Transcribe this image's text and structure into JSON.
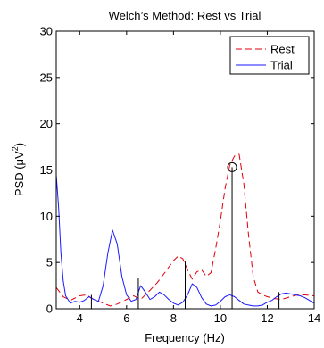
{
  "chart_data": {
    "type": "line",
    "title": "Welch’s Method: Rest vs Trial",
    "xlabel": "Frequency (Hz)",
    "ylabel_prefix": "PSD (",
    "ylabel_unit": "μV",
    "ylabel_exp": "2",
    "ylabel_suffix": ")",
    "xlim": [
      3,
      14
    ],
    "ylim": [
      0,
      30
    ],
    "xticks": [
      4,
      6,
      8,
      10,
      12,
      14
    ],
    "yticks": [
      0,
      5,
      10,
      15,
      20,
      25,
      30
    ],
    "grid": false,
    "legend_position": "top-right",
    "series": [
      {
        "name": "Rest",
        "color": "#e0000d",
        "style": "dashed",
        "x": [
          3,
          3.3,
          3.6,
          4,
          4.3,
          4.6,
          5,
          5.3,
          5.6,
          6,
          6.3,
          6.6,
          7,
          7.3,
          7.6,
          8,
          8.2,
          8.4,
          8.6,
          8.8,
          9,
          9.2,
          9.4,
          9.6,
          9.8,
          10,
          10.2,
          10.4,
          10.6,
          10.8,
          11,
          11.2,
          11.4,
          11.6,
          11.8,
          12,
          12.3,
          12.6,
          13,
          13.3,
          13.6,
          14
        ],
        "y": [
          2.3,
          1.3,
          0.9,
          1.4,
          1.5,
          1.0,
          0.6,
          0.3,
          0.5,
          1.0,
          1.4,
          1.0,
          2.0,
          2.8,
          3.8,
          5.2,
          5.7,
          5.4,
          4.2,
          3.2,
          4.0,
          4.2,
          3.5,
          3.9,
          6.5,
          9.5,
          13.0,
          15.5,
          16.5,
          16.7,
          13.5,
          8.0,
          3.5,
          1.8,
          1.5,
          1.3,
          1.1,
          1.0,
          1.3,
          1.5,
          1.5,
          1.4
        ]
      },
      {
        "name": "Trial",
        "color": "#1a1aff",
        "style": "solid",
        "x": [
          3,
          3.1,
          3.2,
          3.3,
          3.4,
          3.6,
          3.8,
          4,
          4.2,
          4.4,
          4.6,
          4.8,
          5,
          5.2,
          5.4,
          5.6,
          5.8,
          6,
          6.2,
          6.4,
          6.6,
          6.8,
          7,
          7.2,
          7.4,
          7.6,
          7.8,
          8,
          8.2,
          8.4,
          8.6,
          8.8,
          9,
          9.2,
          9.4,
          9.6,
          9.8,
          10,
          10.2,
          10.4,
          10.6,
          10.8,
          11,
          11.2,
          11.4,
          11.6,
          11.8,
          12,
          12.2,
          12.4,
          12.6,
          12.8,
          13,
          13.2,
          13.4,
          13.6,
          13.8,
          14
        ],
        "y": [
          14.5,
          11.0,
          6.0,
          3.0,
          1.4,
          0.6,
          0.8,
          0.7,
          0.9,
          1.3,
          1.0,
          0.8,
          2.5,
          6.0,
          8.5,
          7.0,
          3.5,
          1.5,
          0.8,
          1.0,
          2.5,
          1.8,
          1.0,
          1.3,
          1.8,
          1.5,
          1.0,
          0.6,
          0.4,
          0.7,
          1.5,
          2.7,
          2.3,
          1.2,
          0.5,
          0.3,
          0.4,
          0.8,
          1.3,
          1.5,
          1.3,
          0.9,
          0.5,
          0.4,
          0.3,
          0.3,
          0.4,
          0.7,
          0.9,
          1.3,
          1.6,
          1.7,
          1.6,
          1.5,
          1.4,
          1.2,
          0.9,
          0.6
        ]
      }
    ],
    "stems": [
      {
        "x": 4.5,
        "y": 1.5
      },
      {
        "x": 6.5,
        "y": 3.3
      },
      {
        "x": 8.5,
        "y": 5.1
      },
      {
        "x": 10.5,
        "y": 15.3
      },
      {
        "x": 12.5,
        "y": 1.8
      }
    ],
    "marker": {
      "x": 10.5,
      "y": 15.3
    }
  }
}
